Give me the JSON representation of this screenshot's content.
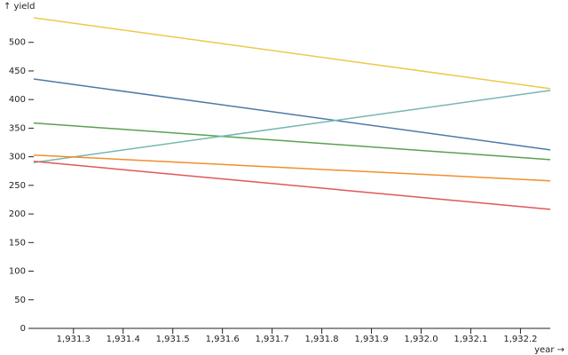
{
  "chart_data": {
    "type": "line",
    "ylabel": "↑ yield",
    "xlabel": "year →",
    "x": [
      1931.22,
      1932.26
    ],
    "xlim": [
      1931.22,
      1932.26
    ],
    "xticks": [
      {
        "value": 1931.3,
        "label": "1,931.3"
      },
      {
        "value": 1931.4,
        "label": "1,931.4"
      },
      {
        "value": 1931.5,
        "label": "1,931.5"
      },
      {
        "value": 1931.6,
        "label": "1,931.6"
      },
      {
        "value": 1931.7,
        "label": "1,931.7"
      },
      {
        "value": 1931.8,
        "label": "1,931.8"
      },
      {
        "value": 1931.9,
        "label": "1,931.9"
      },
      {
        "value": 1932.0,
        "label": "1,932.0"
      },
      {
        "value": 1932.1,
        "label": "1,932.1"
      },
      {
        "value": 1932.2,
        "label": "1,932.2"
      }
    ],
    "ylim": [
      0,
      543
    ],
    "yticks": [
      0,
      50,
      100,
      150,
      200,
      250,
      300,
      350,
      400,
      450,
      500
    ],
    "series": [
      {
        "color": "#edc949",
        "values": [
          543,
          419
        ]
      },
      {
        "color": "#4e79a7",
        "values": [
          436,
          312
        ]
      },
      {
        "color": "#59a14f",
        "values": [
          359,
          295
        ]
      },
      {
        "color": "#76b7b2",
        "values": [
          290,
          416
        ]
      },
      {
        "color": "#f28e2c",
        "values": [
          303,
          258
        ]
      },
      {
        "color": "#e15759",
        "values": [
          292,
          208
        ]
      }
    ]
  }
}
